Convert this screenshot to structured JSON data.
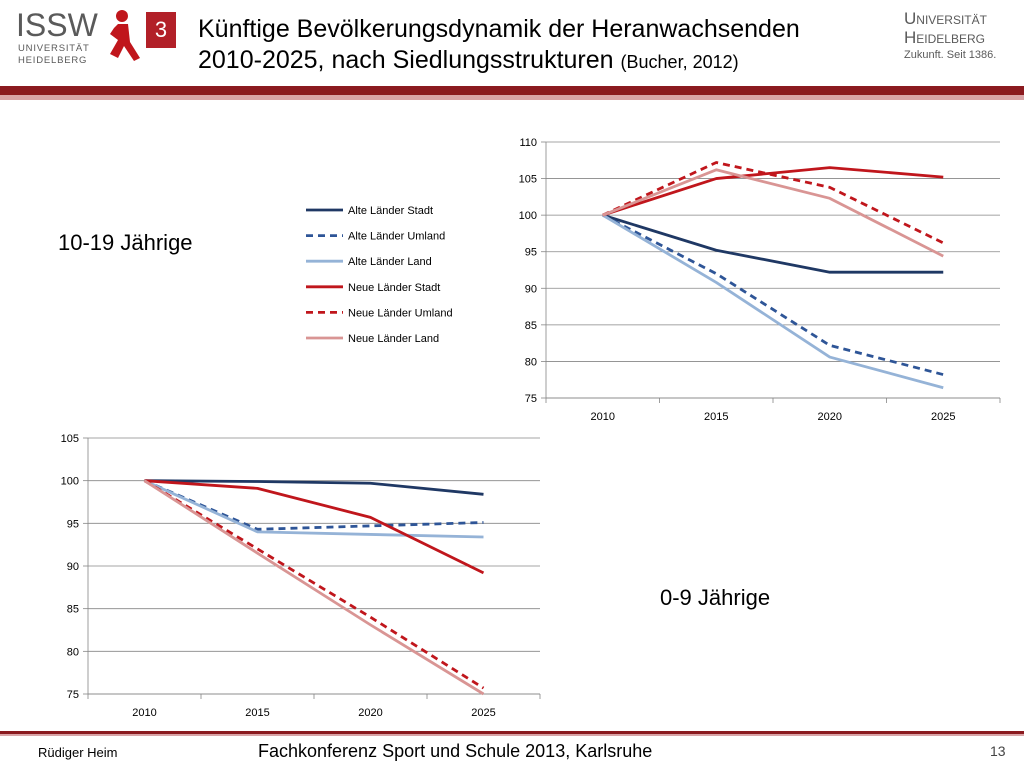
{
  "header": {
    "org_left": "ISSW",
    "org_left_sub1": "UNIVERSITÄT",
    "org_left_sub2": "HEIDELBERG",
    "slide_badge": "3",
    "title_line1": "Künftige Bevölkerungsdynamik der Heranwachsenden",
    "title_line2": "2010-2025, nach Siedlungsstrukturen",
    "title_cite": "(Bucher, 2012)",
    "org_right_line1": "Universität",
    "org_right_line2": "Heidelberg",
    "org_right_tagline": "Zukunft. Seit 1386."
  },
  "labels": {
    "top_chart": "10-19 Jährige",
    "bottom_chart": "0-9 Jährige"
  },
  "footer": {
    "author": "Rüdiger Heim",
    "event": "Fachkonferenz Sport und Schule 2013, Karlsruhe",
    "page": "13"
  },
  "colors": {
    "alt_dark": "#1f3864",
    "alt_dash": "#2e5597",
    "alt_light": "#95b3d7",
    "neu_dark": "#c0161c",
    "neu_dash": "#c0161c",
    "neu_light": "#d99594"
  },
  "chart_data": [
    {
      "type": "line",
      "categories": [
        "2010",
        "2015",
        "2020",
        "2025"
      ],
      "ylim": [
        75,
        110
      ],
      "yticks": [
        75,
        80,
        85,
        90,
        95,
        100,
        105,
        110
      ],
      "grid": true,
      "legend": "left",
      "series": [
        {
          "name": "Alte Länder Stadt",
          "style": "solid",
          "color": "#1f3864",
          "values": [
            100,
            95.2,
            92.2,
            92.2
          ]
        },
        {
          "name": "Alte Länder Umland",
          "style": "dashed",
          "color": "#2e5597",
          "values": [
            100,
            92,
            82.2,
            78.2
          ]
        },
        {
          "name": "Alte Länder Land",
          "style": "solid",
          "color": "#95b3d7",
          "values": [
            100,
            90.8,
            80.6,
            76.4
          ]
        },
        {
          "name": "Neue Länder Stadt",
          "style": "solid",
          "color": "#c0161c",
          "values": [
            100,
            105,
            106.5,
            105.2
          ]
        },
        {
          "name": "Neue Länder Umland",
          "style": "dashed",
          "color": "#c0161c",
          "values": [
            100,
            107.2,
            103.8,
            96.2
          ]
        },
        {
          "name": "Neue Länder Land",
          "style": "solid",
          "color": "#d99594",
          "values": [
            100,
            106.2,
            102.3,
            94.4
          ]
        }
      ]
    },
    {
      "type": "line",
      "categories": [
        "2010",
        "2015",
        "2020",
        "2025"
      ],
      "ylim": [
        75,
        105
      ],
      "yticks": [
        75,
        80,
        85,
        90,
        95,
        100,
        105
      ],
      "grid": true,
      "series": [
        {
          "style": "solid",
          "color": "#1f3864",
          "values": [
            100,
            99.9,
            99.7,
            98.4
          ]
        },
        {
          "style": "dashed",
          "color": "#2e5597",
          "values": [
            100,
            94.3,
            94.7,
            95.1
          ]
        },
        {
          "style": "solid",
          "color": "#95b3d7",
          "values": [
            100,
            94,
            93.7,
            93.4
          ]
        },
        {
          "style": "solid",
          "color": "#c0161c",
          "values": [
            100,
            99.1,
            95.7,
            89.2
          ]
        },
        {
          "style": "dashed",
          "color": "#c0161c",
          "values": [
            100,
            92,
            84,
            75.7
          ]
        },
        {
          "style": "solid",
          "color": "#d99594",
          "values": [
            100,
            91.5,
            83.1,
            75
          ]
        }
      ]
    }
  ]
}
